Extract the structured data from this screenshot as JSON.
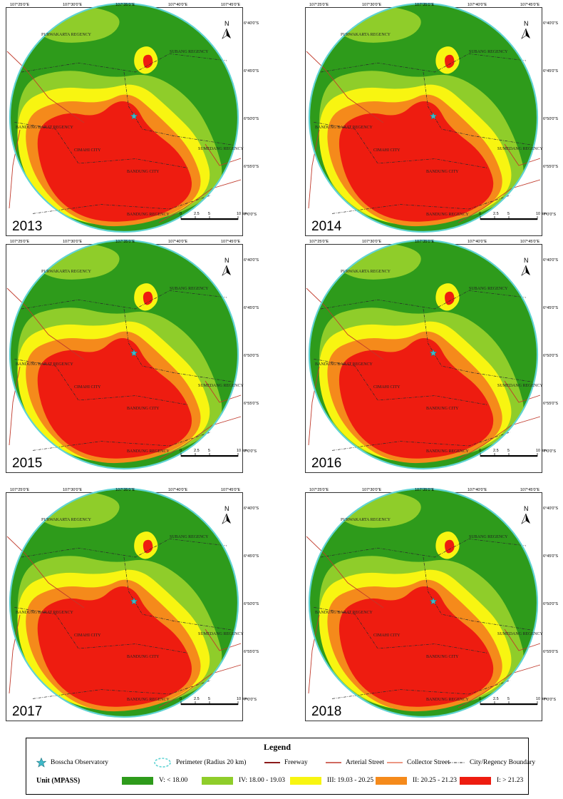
{
  "colors": {
    "class_v": "#2e9b1b",
    "class_iv": "#8fcd2a",
    "class_iii": "#f8f511",
    "class_ii": "#f58a1b",
    "class_i": "#ee1c10",
    "perimeter": "#5fd3d3",
    "observatory": "#3fb9c9",
    "road": "#c0392b"
  },
  "panels": [
    {
      "year": "2013",
      "lon_ticks": [
        "107°25'0\"E",
        "107°30'0\"E",
        "107°35'0\"E",
        "107°40'0\"E",
        "107°45'0\"E"
      ],
      "lat_ticks": [
        "6°40'0\"S",
        "6°45'0\"S",
        "6°50'0\"S",
        "6°55'0\"S",
        "7°0'0\"S"
      ],
      "places": [
        "PURWAKARTA REGENCY",
        "SUBANG REGENCY",
        "BANDUNG BARAT REGENCY",
        "CIMAHI CITY",
        "BANDUNG CITY",
        "SUMEDANG REGENCY",
        "BANDUNG REGENCY"
      ],
      "north": "N",
      "scale_labels": [
        "0",
        "2.5",
        "5",
        "10 km"
      ]
    },
    {
      "year": "2014",
      "lon_ticks": [
        "107°25'0\"E",
        "107°30'0\"E",
        "107°35'0\"E",
        "107°40'0\"E",
        "107°45'0\"E"
      ],
      "lat_ticks": [
        "6°40'0\"S",
        "6°45'0\"S",
        "6°50'0\"S",
        "6°55'0\"S",
        "7°0'0\"S"
      ],
      "places": [
        "PURWAKARTA REGENCY",
        "SUBANG REGENCY",
        "BANDUNG BARAT REGENCY",
        "CIMAHI CITY",
        "BANDUNG CITY",
        "SUMEDANG REGENCY",
        "BANDUNG REGENCY"
      ],
      "north": "N",
      "scale_labels": [
        "0",
        "2.5",
        "5",
        "10 km"
      ]
    },
    {
      "year": "2015",
      "lon_ticks": [
        "107°25'0\"E",
        "107°30'0\"E",
        "107°35'0\"E",
        "107°40'0\"E",
        "107°45'0\"E"
      ],
      "lat_ticks": [
        "6°40'0\"S",
        "6°45'0\"S",
        "6°50'0\"S",
        "6°55'0\"S",
        "7°0'0\"S"
      ],
      "places": [
        "PURWAKARTA REGENCY",
        "SUBANG REGENCY",
        "BANDUNG BARAT REGENCY",
        "CIMAHI CITY",
        "BANDUNG CITY",
        "SUMEDANG REGENCY",
        "BANDUNG REGENCY"
      ],
      "north": "N",
      "scale_labels": [
        "0",
        "2.5",
        "5",
        "10 km"
      ]
    },
    {
      "year": "2016",
      "lon_ticks": [
        "107°25'0\"E",
        "107°30'0\"E",
        "107°35'0\"E",
        "107°40'0\"E",
        "107°45'0\"E"
      ],
      "lat_ticks": [
        "6°40'0\"S",
        "6°45'0\"S",
        "6°50'0\"S",
        "6°55'0\"S",
        "7°0'0\"S"
      ],
      "places": [
        "PURWAKARTA REGENCY",
        "SUBANG REGENCY",
        "BANDUNG BARAT REGENCY",
        "CIMAHI CITY",
        "BANDUNG CITY",
        "SUMEDANG REGENCY",
        "BANDUNG REGENCY"
      ],
      "north": "N",
      "scale_labels": [
        "0",
        "2.5",
        "5",
        "10 km"
      ]
    },
    {
      "year": "2017",
      "lon_ticks": [
        "107°25'0\"E",
        "107°30'0\"E",
        "107°35'0\"E",
        "107°40'0\"E",
        "107°45'0\"E"
      ],
      "lat_ticks": [
        "6°40'0\"S",
        "6°45'0\"S",
        "6°50'0\"S",
        "6°55'0\"S",
        "7°0'0\"S"
      ],
      "places": [
        "PURWAKARTA REGENCY",
        "SUBANG REGENCY",
        "BANDUNG BARAT REGENCY",
        "CIMAHI CITY",
        "BANDUNG CITY",
        "SUMEDANG REGENCY",
        "BANDUNG REGENCY"
      ],
      "north": "N",
      "scale_labels": [
        "0",
        "2.5",
        "5",
        "10 km"
      ]
    },
    {
      "year": "2018",
      "lon_ticks": [
        "107°25'0\"E",
        "107°30'0\"E",
        "107°35'0\"E",
        "107°40'0\"E",
        "107°45'0\"E"
      ],
      "lat_ticks": [
        "6°40'0\"S",
        "6°45'0\"S",
        "6°50'0\"S",
        "6°55'0\"S",
        "7°0'0\"S"
      ],
      "places": [
        "PURWAKARTA REGENCY",
        "SUBANG REGENCY",
        "BANDUNG BARAT REGENCY",
        "CIMAHI CITY",
        "BANDUNG CITY",
        "SUMEDANG REGENCY",
        "BANDUNG REGENCY"
      ],
      "north": "N",
      "scale_labels": [
        "0",
        "2.5",
        "5",
        "10 km"
      ]
    }
  ],
  "legend": {
    "title": "Legend",
    "observatory": "Bosscha Observatory",
    "perimeter": "Perimeter (Radius 20 km)",
    "freeway": "Freeway",
    "arterial": "Arterial Street",
    "collector": "Collector Street",
    "boundary": "City/Regency Boundary",
    "unit": "Unit (MPASS)",
    "classes": [
      {
        "label": "V: < 18.00",
        "color_key": "class_v"
      },
      {
        "label": "IV: 18.00 - 19.03",
        "color_key": "class_iv"
      },
      {
        "label": "III: 19.03 - 20.25",
        "color_key": "class_iii"
      },
      {
        "label": "II: 20.25 - 21.23",
        "color_key": "class_ii"
      },
      {
        "label": "I: > 21.23",
        "color_key": "class_i"
      }
    ]
  }
}
